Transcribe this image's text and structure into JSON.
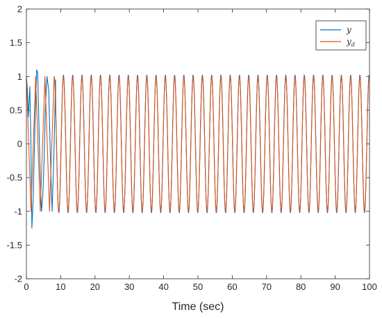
{
  "chart_data": {
    "type": "line",
    "title": "",
    "xlabel": "Time (sec)",
    "ylabel": "",
    "xlim": [
      0,
      100
    ],
    "ylim": [
      -2,
      2
    ],
    "xticks": [
      0,
      10,
      20,
      30,
      40,
      50,
      60,
      70,
      80,
      90,
      100
    ],
    "yticks": [
      -2,
      -1.5,
      -1,
      -0.5,
      0,
      0.5,
      1,
      1.5,
      2
    ],
    "xtick_labels": [
      "0",
      "10",
      "20",
      "30",
      "40",
      "50",
      "60",
      "70",
      "80",
      "90",
      "100"
    ],
    "ytick_labels": [
      "-2",
      "-1.5",
      "-1",
      "-0.5",
      "0",
      "0.5",
      "1",
      "1.5",
      "2"
    ],
    "grid": false,
    "legend_position": "top-right",
    "period": 2.7,
    "series": [
      {
        "name": "y",
        "color": "#0072BD",
        "x": [
          0,
          0.3,
          0.6,
          1.0,
          1.3,
          1.6,
          2.0,
          2.5,
          3.0,
          3.3,
          3.6,
          4.0,
          4.4,
          4.8,
          5.2,
          5.5,
          6.0,
          6.5,
          7.0,
          7.5,
          8.0,
          8.5
        ],
        "values": [
          1.0,
          0.8,
          0.4,
          0.85,
          0.1,
          -1.25,
          -0.8,
          0.3,
          1.1,
          1.05,
          0.4,
          -0.4,
          -1.0,
          -0.75,
          -0.2,
          0.5,
          1.0,
          0.8,
          -0.2,
          -1.0,
          -0.2,
          0.95
        ]
      },
      {
        "name": "y_d",
        "color": "#D95319",
        "x": [
          0,
          0.675,
          1.35,
          2.025,
          2.7,
          3.375,
          4.05,
          4.725,
          5.4,
          6.075,
          6.75,
          7.425,
          8.1
        ],
        "values": [
          1,
          0,
          -1,
          0,
          1,
          0,
          -1,
          0,
          1,
          0,
          -1,
          0,
          1
        ]
      }
    ]
  },
  "legend": {
    "entry_1_main": "y",
    "entry_2_main": "y",
    "entry_2_sub": "d"
  }
}
